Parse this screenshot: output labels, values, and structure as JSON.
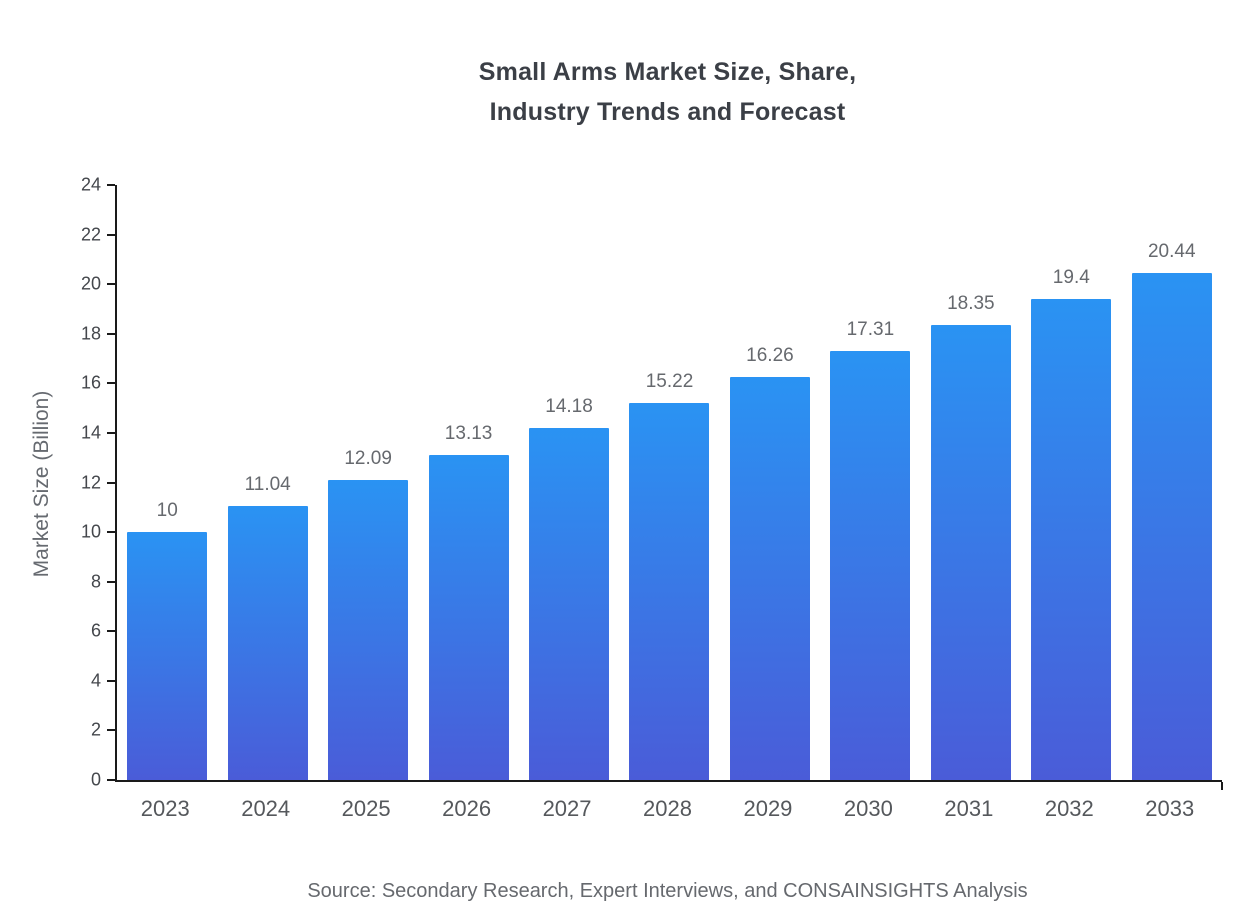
{
  "chart": {
    "title_line1": "Small Arms Market Size, Share,",
    "title_line2": "Industry Trends and Forecast",
    "ylabel": "Market Size (Billion)",
    "source": "Source: Secondary Research, Expert Interviews, and CONSAINSIGHTS Analysis"
  },
  "chart_data": {
    "type": "bar",
    "title": "Small Arms Market Size, Share, Industry Trends and Forecast",
    "categories": [
      "2023",
      "2024",
      "2025",
      "2026",
      "2027",
      "2028",
      "2029",
      "2030",
      "2031",
      "2032",
      "2033"
    ],
    "values": [
      10,
      11.04,
      12.09,
      13.13,
      14.18,
      15.22,
      16.26,
      17.31,
      18.35,
      19.4,
      20.44
    ],
    "value_labels": [
      "10",
      "11.04",
      "12.09",
      "13.13",
      "14.18",
      "15.22",
      "16.26",
      "17.31",
      "18.35",
      "19.4",
      "20.44"
    ],
    "xlabel": "",
    "ylabel": "Market Size (Billion)",
    "ylim": [
      0,
      24
    ],
    "ytick_step": 2,
    "grid": false,
    "legend": null,
    "bar_color_top": "#2a93f3",
    "bar_color_bottom": "#4a5cd8"
  }
}
